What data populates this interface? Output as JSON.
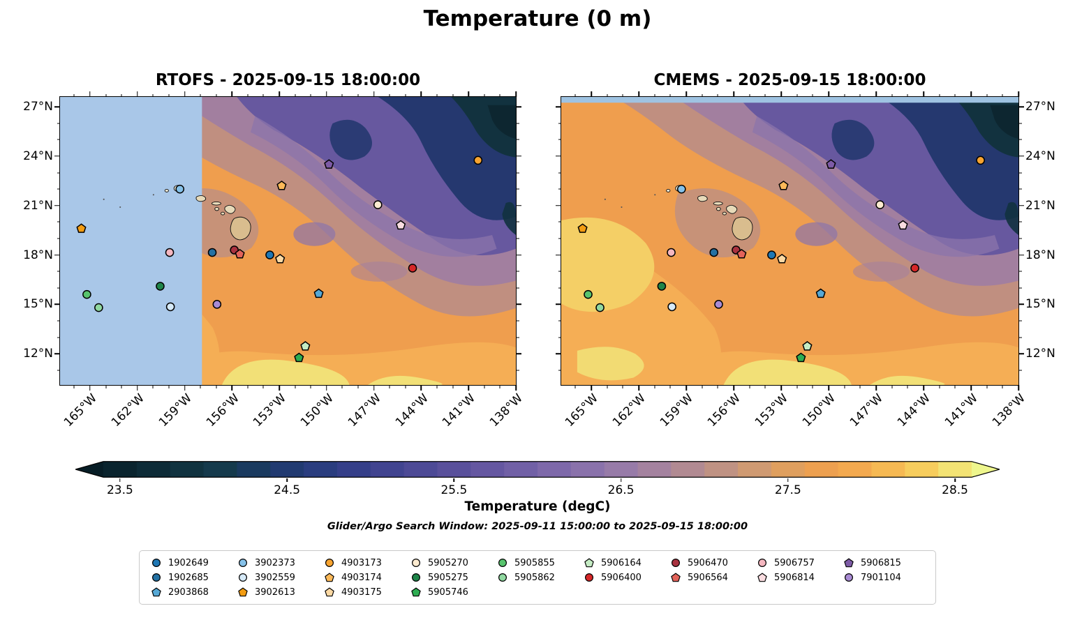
{
  "chart_data": {
    "type": "heatmap",
    "title": "Temperature (0 m)",
    "note": "Glider/Argo Search Window: 2025-09-11 15:00:00 to 2025-09-15 18:00:00",
    "panels": [
      {
        "name": "RTOFS",
        "title": "RTOFS - 2025-09-15 18:00:00",
        "mask": {
          "type": "west",
          "boundary_lon": -157.9,
          "color": "#a9c7e8"
        }
      },
      {
        "name": "CMEMS",
        "title": "CMEMS - 2025-09-15 18:00:00",
        "mask": {
          "type": "north",
          "boundary_lat": 27.25,
          "color": "#9fc3e2"
        }
      }
    ],
    "axes": {
      "lon_min": -166.9,
      "lon_max": -138.0,
      "lat_min": 10.1,
      "lat_max": 27.6,
      "xticks": [
        {
          "value": -165,
          "label": "165°W"
        },
        {
          "value": -162,
          "label": "162°W"
        },
        {
          "value": -159,
          "label": "159°W"
        },
        {
          "value": -156,
          "label": "156°W"
        },
        {
          "value": -153,
          "label": "153°W"
        },
        {
          "value": -150,
          "label": "150°W"
        },
        {
          "value": -147,
          "label": "147°W"
        },
        {
          "value": -144,
          "label": "144°W"
        },
        {
          "value": -141,
          "label": "141°W"
        },
        {
          "value": -138,
          "label": "138°W"
        }
      ],
      "yticks": [
        {
          "value": 27,
          "label": "27°N"
        },
        {
          "value": 24,
          "label": "24°N"
        },
        {
          "value": 21,
          "label": "21°N"
        },
        {
          "value": 18,
          "label": "18°N"
        },
        {
          "value": 15,
          "label": "15°N"
        },
        {
          "value": 12,
          "label": "12°N"
        }
      ],
      "grid": false
    },
    "colorbar": {
      "label": "Temperature (degC)",
      "vmin": 23.4,
      "vmax": 28.6,
      "ticks": [
        {
          "value": 23.5,
          "label": "23.5"
        },
        {
          "value": 24.5,
          "label": "24.5"
        },
        {
          "value": 25.5,
          "label": "25.5"
        },
        {
          "value": 26.5,
          "label": "26.5"
        },
        {
          "value": 27.5,
          "label": "27.5"
        },
        {
          "value": 28.5,
          "label": "28.5"
        }
      ],
      "colors": [
        "#0a242e",
        "#0d2b37",
        "#113340",
        "#153a4c",
        "#1a3a5f",
        "#213a71",
        "#2a3d7f",
        "#353f89",
        "#414490",
        "#4d4a96",
        "#59509b",
        "#6557a1",
        "#7160a6",
        "#7e69aa",
        "#8a72ab",
        "#977ba8",
        "#a4829f",
        "#b18a92",
        "#bf9283",
        "#cf9a72",
        "#df9f5e",
        "#eda050",
        "#f3a94f",
        "#f6b953",
        "#f7cd5d",
        "#f3e374"
      ],
      "under": "#071d26",
      "over": "#eef68d"
    },
    "points": [
      {
        "id": "1902649",
        "shape": "circle",
        "color": "#1f77b4",
        "lon": -153.6,
        "lat": 18.0
      },
      {
        "id": "1902685",
        "shape": "circle",
        "color": "#2471a3",
        "lon": -157.25,
        "lat": 18.15
      },
      {
        "id": "2903868",
        "shape": "pentagon",
        "color": "#56a8d5",
        "lon": -150.5,
        "lat": 15.65
      },
      {
        "id": "3902373",
        "shape": "circle",
        "color": "#85c1e9",
        "lon": -159.3,
        "lat": 22.0
      },
      {
        "id": "3902559",
        "shape": "circle",
        "color": "#d6eaf8",
        "lon": -159.9,
        "lat": 14.85
      },
      {
        "id": "3902613",
        "shape": "pentagon",
        "color": "#f39c12",
        "lon": -165.55,
        "lat": 19.6
      },
      {
        "id": "4903173",
        "shape": "circle",
        "color": "#f8a430",
        "lon": -140.4,
        "lat": 23.75
      },
      {
        "id": "4903174",
        "shape": "pentagon",
        "color": "#fbb959",
        "lon": -152.85,
        "lat": 22.2
      },
      {
        "id": "4903175",
        "shape": "pentagon",
        "color": "#fcd9a4",
        "lon": -152.95,
        "lat": 17.75
      },
      {
        "id": "5905270",
        "shape": "circle",
        "color": "#fdebd0",
        "lon": -146.75,
        "lat": 21.05
      },
      {
        "id": "5905275",
        "shape": "circle",
        "color": "#1e8449",
        "lon": -160.55,
        "lat": 16.1
      },
      {
        "id": "5905746",
        "shape": "pentagon",
        "color": "#2eac52",
        "lon": -151.75,
        "lat": 11.75
      },
      {
        "id": "5905855",
        "shape": "circle",
        "color": "#58c46e",
        "lon": -165.2,
        "lat": 15.6
      },
      {
        "id": "5905862",
        "shape": "circle",
        "color": "#90d8a0",
        "lon": -164.45,
        "lat": 14.8
      },
      {
        "id": "5906164",
        "shape": "pentagon",
        "color": "#c5ecc4",
        "lon": -151.35,
        "lat": 12.45
      },
      {
        "id": "5906400",
        "shape": "circle",
        "color": "#d62728",
        "lon": -144.55,
        "lat": 17.2
      },
      {
        "id": "5906470",
        "shape": "circle",
        "color": "#a93240",
        "lon": -155.85,
        "lat": 18.3
      },
      {
        "id": "5906564",
        "shape": "pentagon",
        "color": "#e2635a",
        "lon": -155.5,
        "lat": 18.05
      },
      {
        "id": "5906757",
        "shape": "circle",
        "color": "#f5b7c0",
        "lon": -159.95,
        "lat": 18.15
      },
      {
        "id": "5906814",
        "shape": "pentagon",
        "color": "#fadde1",
        "lon": -145.3,
        "lat": 19.8
      },
      {
        "id": "5906815",
        "shape": "pentagon",
        "color": "#7d5ba6",
        "lon": -149.85,
        "lat": 23.5
      },
      {
        "id": "7901104",
        "shape": "circle",
        "color": "#a98bd4",
        "lon": -156.95,
        "lat": 15.0
      }
    ],
    "legend_rows": [
      [
        "1902649",
        "3902373",
        "4903173",
        "5905270",
        "5905855",
        "5906164",
        "5906470",
        "5906757",
        "5906815"
      ],
      [
        "1902685",
        "3902559",
        "4903174",
        "5905275",
        "5905862",
        "5906400",
        "5906564",
        "5906814",
        "7901104"
      ],
      [
        "2903868",
        "3902613",
        "4903175",
        "5905746"
      ]
    ]
  }
}
